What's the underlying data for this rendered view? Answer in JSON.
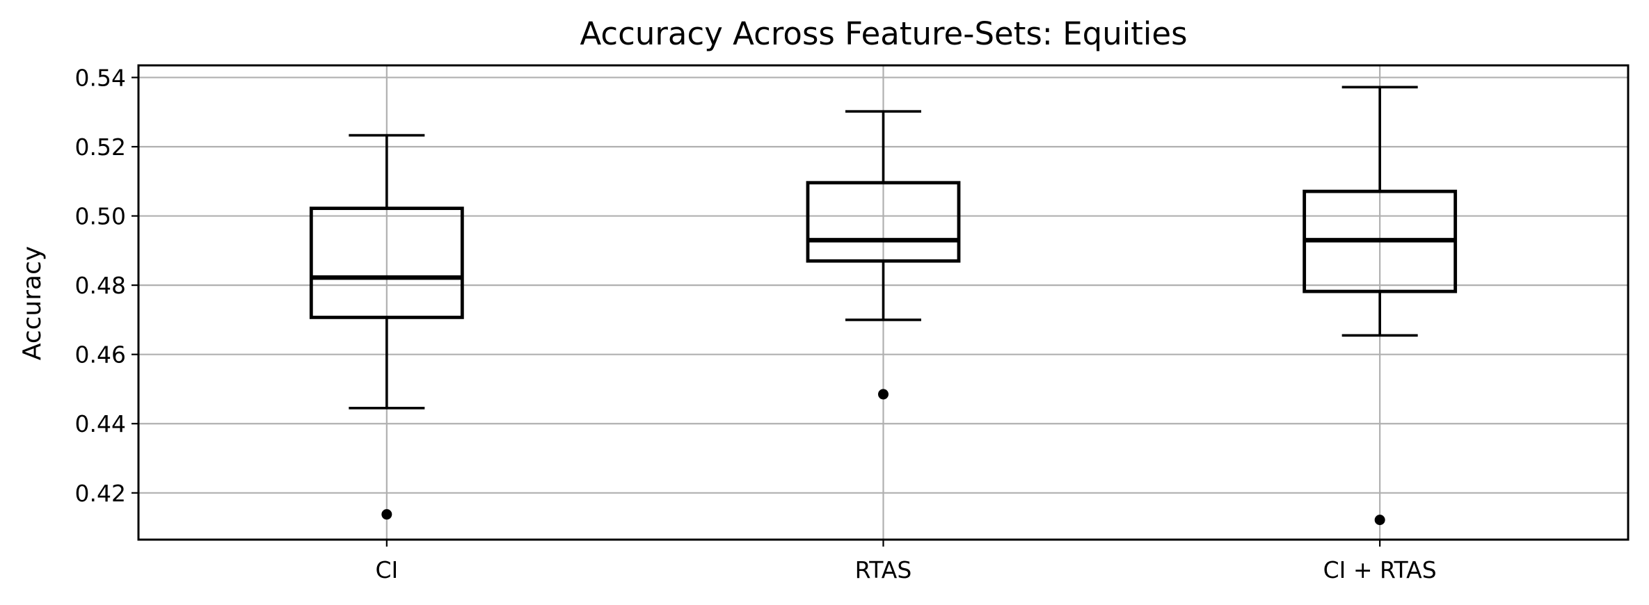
{
  "chart_data": {
    "type": "box",
    "title": "Accuracy Across Feature-Sets: Equities",
    "xlabel": "",
    "ylabel": "Accuracy",
    "ylim": [
      0.4065,
      0.5435
    ],
    "yticks": [
      0.42,
      0.44,
      0.46,
      0.48,
      0.5,
      0.52,
      0.54
    ],
    "ytick_labels": [
      "0.42",
      "0.44",
      "0.46",
      "0.48",
      "0.50",
      "0.52",
      "0.54"
    ],
    "grid": true,
    "categories": [
      "CI",
      "RTAS",
      "CI + RTAS"
    ],
    "boxes": [
      {
        "label": "CI",
        "whisker_low": 0.4445,
        "q1": 0.4707,
        "median": 0.4822,
        "q3": 0.5022,
        "whisker_high": 0.5233,
        "outliers": [
          0.4138
        ]
      },
      {
        "label": "RTAS",
        "whisker_low": 0.47,
        "q1": 0.487,
        "median": 0.493,
        "q3": 0.5096,
        "whisker_high": 0.5302,
        "outliers": [
          0.4485
        ]
      },
      {
        "label": "CI + RTAS",
        "whisker_low": 0.4655,
        "q1": 0.4782,
        "median": 0.493,
        "q3": 0.5071,
        "whisker_high": 0.5372,
        "outliers": [
          0.4122
        ]
      }
    ],
    "colors": {
      "box": "#000000",
      "grid": "#b0b0b0",
      "background": "#ffffff"
    }
  }
}
